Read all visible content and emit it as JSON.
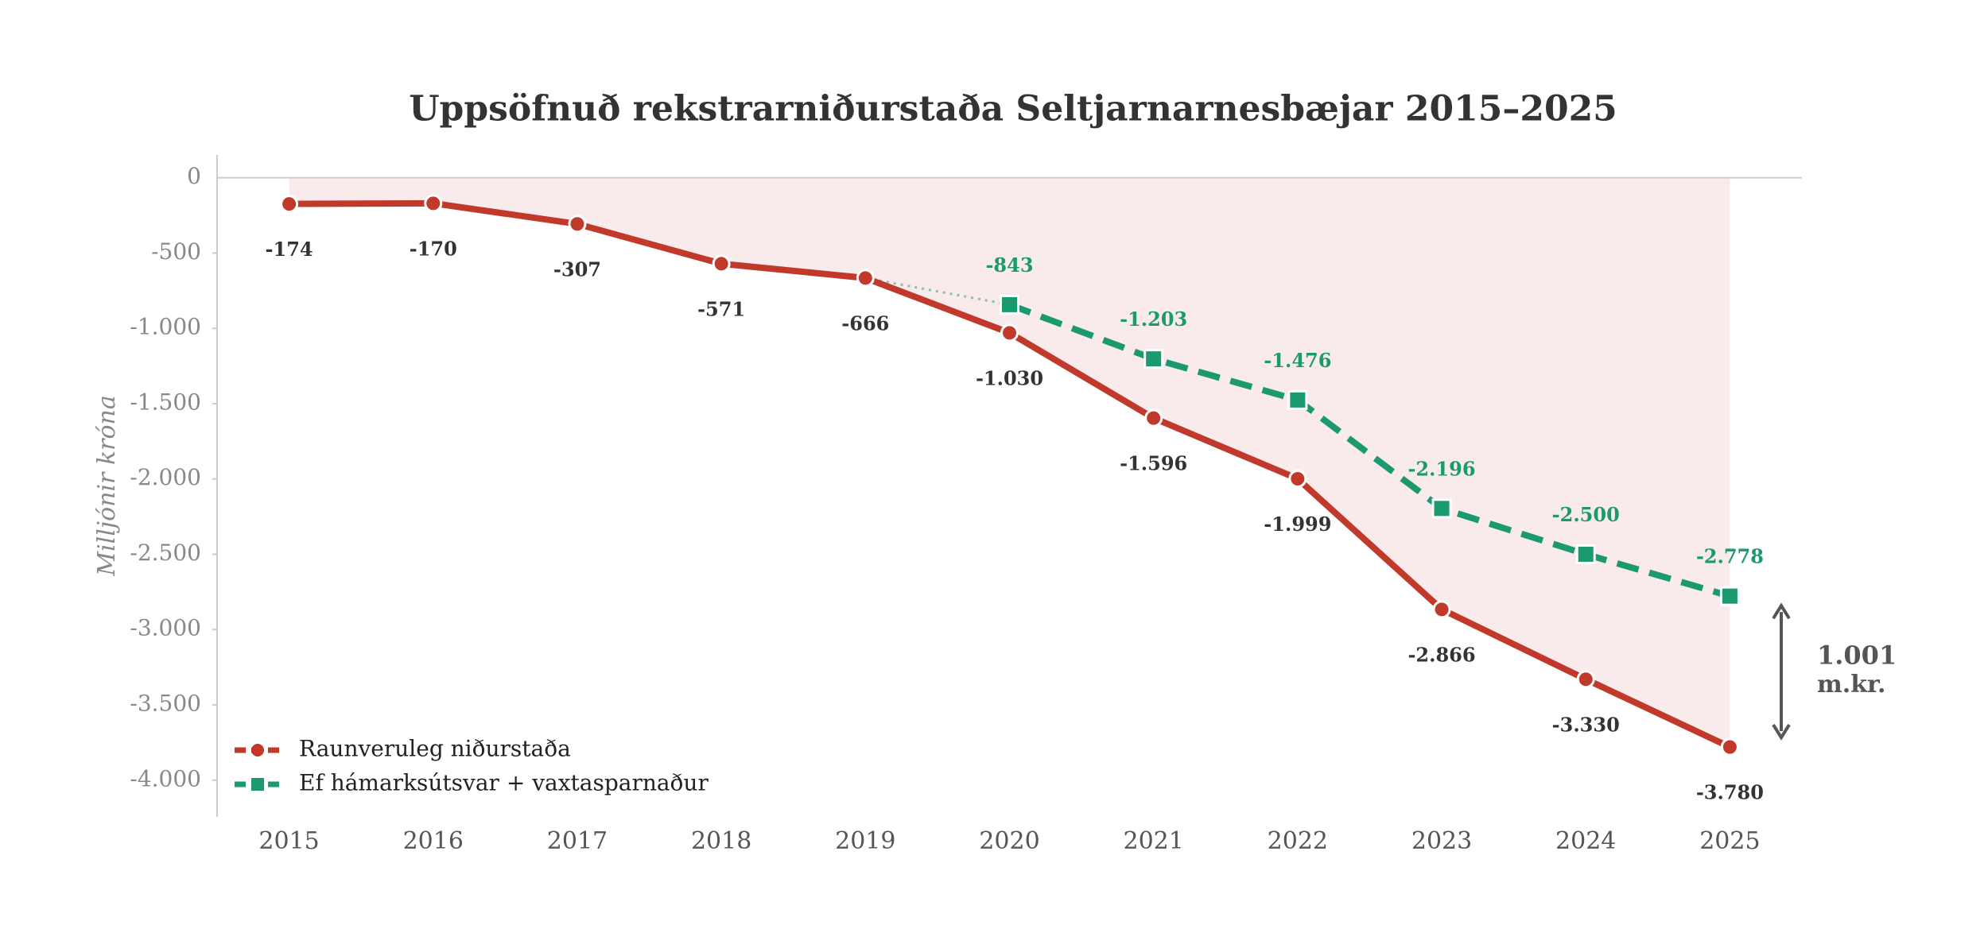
{
  "chart_data": {
    "type": "line",
    "title": "Uppsöfnuð rekstrarniðurstaða Seltjarnarnesbæjar 2015–2025",
    "y_label": "Milljónir króna",
    "x": [
      2015,
      2016,
      2017,
      2018,
      2019,
      2020,
      2021,
      2022,
      2023,
      2024,
      2025
    ],
    "xlim": [
      2014.5,
      2025.5
    ],
    "xticks": [
      2015,
      2016,
      2017,
      2018,
      2019,
      2020,
      2021,
      2022,
      2023,
      2024,
      2025
    ],
    "ylim": [
      -4244,
      151
    ],
    "yticks": [
      0,
      -500,
      {
        "value": -1000,
        "label": "-1.000"
      },
      {
        "value": -1500,
        "label": "-1.500"
      },
      {
        "value": -2000,
        "label": "-2.000"
      },
      {
        "value": -2500,
        "label": "-2.500"
      },
      {
        "value": -3000,
        "label": "-3.000"
      },
      {
        "value": -3500,
        "label": "-3.500"
      },
      {
        "value": -4000,
        "label": "-4.000"
      }
    ],
    "legend": "lower left",
    "series": [
      {
        "name": "Raunveruleg niðurstaða",
        "color": "#c0392b",
        "marker": "circle",
        "area": "#f9ebeb",
        "values": [
          -174,
          -170,
          -307,
          -571,
          -666,
          -1030,
          -1596,
          -1999,
          -2866,
          -3330,
          -3780
        ],
        "value_labels": [
          "-174",
          "-170",
          "-307",
          "-571",
          "-666",
          "-1.030",
          "-1.596",
          "-1.999",
          "-2.866",
          "-3.330",
          "-3.780"
        ]
      },
      {
        "name": "Ef hámarksútsvar + vaxtasparnaður",
        "color": "#1a9a6e",
        "marker": "square",
        "values": [
          null,
          null,
          null,
          null,
          null,
          -843,
          -1203,
          -1476,
          -2196,
          -2500,
          -2778
        ],
        "value_labels": [
          null,
          null,
          null,
          null,
          null,
          "-843",
          "-1.203",
          "-1.476",
          "-2.196",
          "-2.500",
          "-2.778"
        ]
      }
    ],
    "annotation": [
      "1.001",
      "m.kr."
    ]
  }
}
